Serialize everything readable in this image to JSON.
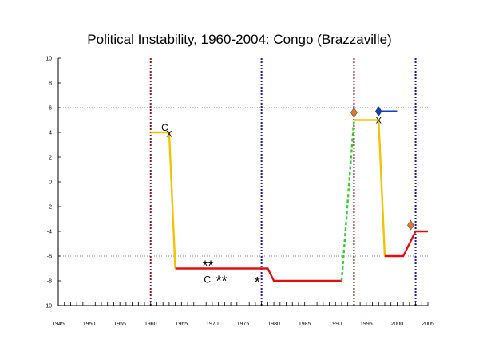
{
  "chart_data": {
    "type": "line",
    "title": "Political Instability, 1960-2004: Congo (Brazzaville)",
    "xlabel": "",
    "ylabel": "",
    "xlim": [
      1945,
      2005
    ],
    "ylim": [
      -10,
      10
    ],
    "x_ticks": [
      1945,
      1950,
      1955,
      1960,
      1965,
      1970,
      1975,
      1980,
      1985,
      1990,
      1995,
      2000,
      2005
    ],
    "x_tick_labels": [
      "1945",
      "1950",
      "1955",
      "1960",
      "1965",
      "1970",
      "1975",
      "1980",
      "1985",
      "1990",
      "1995",
      "2000",
      "2005"
    ],
    "y_ticks": [
      -10,
      -8,
      -6,
      -4,
      -2,
      0,
      2,
      4,
      6,
      8,
      10
    ],
    "y_tick_labels": [
      "-10",
      "-8",
      "-6",
      "-4",
      "-2",
      "0",
      "2",
      "4",
      "6",
      "8",
      "10"
    ],
    "reference_lines": [
      6,
      -6
    ],
    "vertical_lines": [
      {
        "x": 1960,
        "color": "#8b1a1a"
      },
      {
        "x": 1978,
        "color": "#1a1a9a"
      },
      {
        "x": 1993,
        "color": "#8b1a1a"
      },
      {
        "x": 2003,
        "color": "#1a1a9a"
      }
    ],
    "segments": [
      {
        "color": "#f2c200",
        "dashed": false,
        "points": [
          [
            1960,
            4
          ],
          [
            1963,
            4
          ]
        ]
      },
      {
        "color": "#f2c200",
        "dashed": false,
        "points": [
          [
            1963,
            4
          ],
          [
            1964,
            -7
          ]
        ]
      },
      {
        "color": "#e01010",
        "dashed": false,
        "points": [
          [
            1964,
            -7
          ],
          [
            1979,
            -7
          ],
          [
            1980,
            -8
          ],
          [
            1991,
            -8
          ]
        ]
      },
      {
        "color": "#33cc33",
        "dashed": true,
        "points": [
          [
            1991,
            -8
          ],
          [
            1993,
            5
          ]
        ]
      },
      {
        "color": "#f2c200",
        "dashed": false,
        "points": [
          [
            1993,
            5
          ],
          [
            1997,
            5
          ]
        ]
      },
      {
        "color": "#f2c200",
        "dashed": false,
        "points": [
          [
            1997,
            5
          ],
          [
            1998,
            -6
          ]
        ]
      },
      {
        "color": "#e01010",
        "dashed": false,
        "points": [
          [
            1998,
            -6
          ],
          [
            2001,
            -6
          ],
          [
            2003,
            -4
          ],
          [
            2005,
            -4
          ]
        ]
      }
    ],
    "annotations": [
      {
        "text": "C",
        "x": 1962.3,
        "y": 4.4,
        "size": 12
      },
      {
        "text": "X",
        "x": 1963,
        "y": 3.9,
        "size": 11
      },
      {
        "text": "**",
        "x": 1969.3,
        "y": -6.8,
        "size": 18
      },
      {
        "text": "C",
        "x": 1969.2,
        "y": -7.9,
        "size": 12
      },
      {
        "text": "**",
        "x": 1971.5,
        "y": -8.0,
        "size": 18
      },
      {
        "text": "*",
        "x": 1977.3,
        "y": -8.1,
        "size": 18
      },
      {
        "text": "X",
        "x": 1997,
        "y": 5.0,
        "size": 11
      }
    ],
    "diamonds": [
      {
        "x": 1993,
        "y": 5.6,
        "color": "#e07830"
      },
      {
        "x": 1997,
        "y": 5.7,
        "color": "#1040c0"
      },
      {
        "x": 2002.2,
        "y": -3.5,
        "color": "#e07830"
      }
    ],
    "arrows": [
      {
        "x1": 1997,
        "x2": 2000,
        "y": 5.7,
        "color": "#1040c0"
      }
    ]
  }
}
